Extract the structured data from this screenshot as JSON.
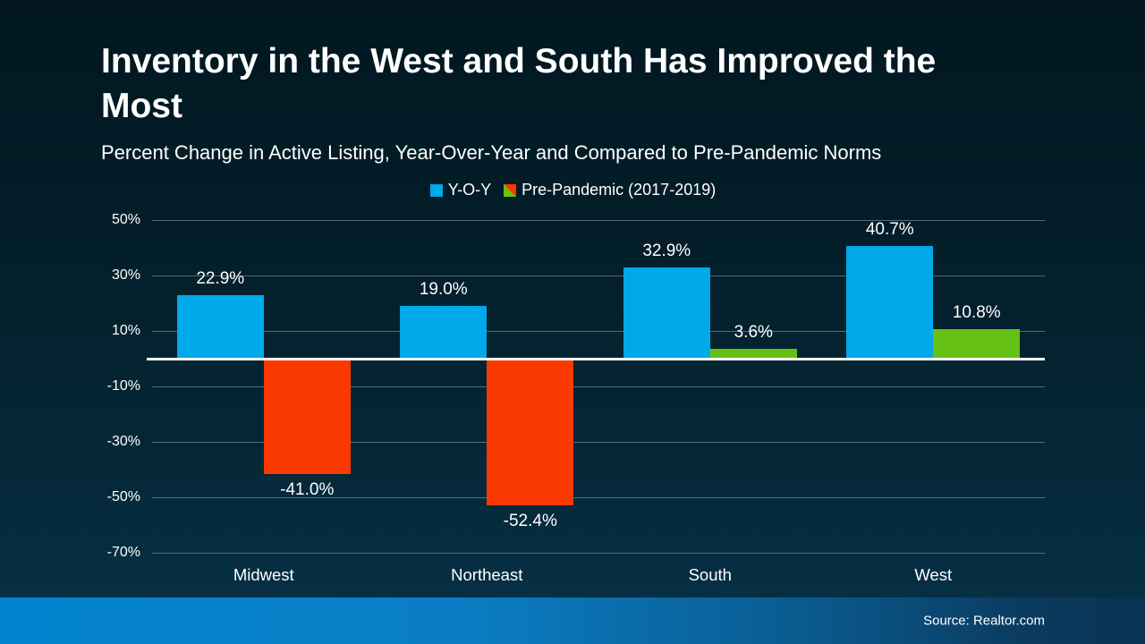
{
  "slide": {
    "title": "Inventory in the West and South Has Improved the Most",
    "subtitle": "Percent Change in Active Listing, Year-Over-Year and Compared to Pre-Pandemic Norms",
    "source": "Source: Realtor.com"
  },
  "colors": {
    "yoy_bar": "#00a9e9",
    "pre_pandemic_positive_bar": "#65c214",
    "pre_pandemic_negative_bar": "#fb3a02",
    "zero_line": "#ffffff",
    "gridline": "rgba(175,195,205,0.45)",
    "text": "#ffffff",
    "background_top": "#021720",
    "background_bottom": "#063248",
    "footer_gradient_left": "#0283cf",
    "footer_gradient_right": "#093254"
  },
  "legend": {
    "items": [
      {
        "label": "Y-O-Y",
        "swatch_icon": "blue-square-swatch"
      },
      {
        "label": "Pre-Pandemic (2017-2019)",
        "swatch_icon": "green-red-diagonal-square-swatch"
      }
    ]
  },
  "chart_data": {
    "type": "bar",
    "title": "Inventory in the West and South Has Improved the Most",
    "subtitle": "Percent Change in Active Listing, Year-Over-Year and Compared to Pre-Pandemic Norms",
    "categories": [
      "Midwest",
      "Northeast",
      "South",
      "West"
    ],
    "series": [
      {
        "name": "Y-O-Y",
        "values": [
          22.9,
          19.0,
          32.9,
          40.7
        ],
        "labels": [
          "22.9%",
          "19.0%",
          "32.9%",
          "40.7%"
        ]
      },
      {
        "name": "Pre-Pandemic (2017-2019)",
        "values": [
          -41.0,
          -52.4,
          3.6,
          10.8
        ],
        "labels": [
          "-41.0%",
          "-52.4%",
          "3.6%",
          "10.8%"
        ]
      }
    ],
    "y_axis": {
      "min": -70,
      "max": 50,
      "ticks": [
        50,
        30,
        10,
        -10,
        -30,
        -50,
        -70
      ],
      "tick_labels": [
        "50%",
        "30%",
        "10%",
        "-10%",
        "-30%",
        "-50%",
        "-70%"
      ]
    },
    "grid": true,
    "legend_position": "top",
    "xlabel": "",
    "ylabel": ""
  }
}
